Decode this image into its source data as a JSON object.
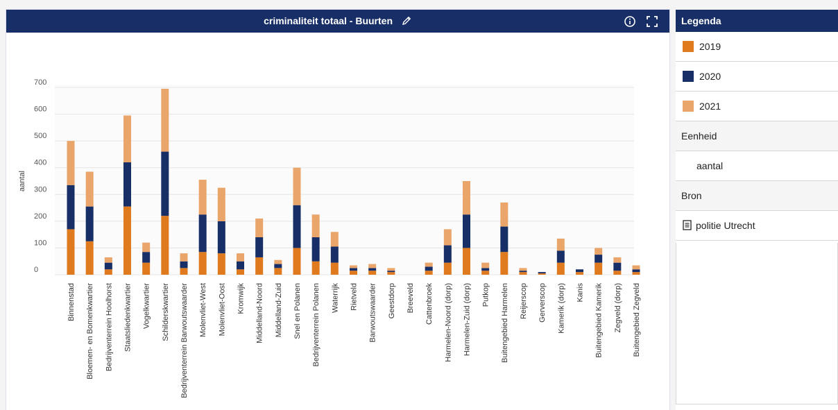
{
  "chart_panel": {
    "title": "criminaliteit totaal - Buurten"
  },
  "chart_data": {
    "type": "bar",
    "stacked": true,
    "ylabel": "aantal",
    "ylim": [
      0,
      700
    ],
    "yticks": [
      0,
      100,
      200,
      300,
      400,
      500,
      600,
      700
    ],
    "grid": true,
    "legend": "right panel",
    "categories": [
      "Binnenstad",
      "Bloemen- en Bomenkwartier",
      "Bedrijventerrein Hoolhorst",
      "Staatsliedenkwartier",
      "Vogelkwartier",
      "Schilderskwartier",
      "Bedrijventerrein Barwoutswaarder",
      "Molenvliet-West",
      "Molenvliet-Oost",
      "Kromwijk",
      "Middelland-Noord",
      "Middelland-Zuid",
      "Snel en Polanen",
      "Bedrijventerrein Polanen",
      "Waterrijk",
      "Rietveld",
      "Barwoutswaarder",
      "Geestdorp",
      "Breeveld",
      "Cattenbroek",
      "Harmelen-Noord (dorp)",
      "Harmelen-Zuid (dorp)",
      "Putkop",
      "Buitengebied Harmelen",
      "Reijerscop",
      "Gerverscop",
      "Kamerik (dorp)",
      "Kanis",
      "Buitengebied Kamerik",
      "Zegveld (dorp)",
      "Buitengebied Zegveld"
    ],
    "series": [
      {
        "name": "2019",
        "color": "#e07a1f",
        "values": [
          170,
          125,
          20,
          255,
          45,
          220,
          25,
          85,
          80,
          20,
          65,
          25,
          100,
          50,
          45,
          15,
          15,
          10,
          0,
          15,
          45,
          100,
          15,
          85,
          10,
          5,
          45,
          10,
          45,
          15,
          10
        ]
      },
      {
        "name": "2020",
        "color": "#172e66",
        "values": [
          165,
          130,
          25,
          165,
          40,
          240,
          25,
          140,
          120,
          30,
          75,
          15,
          160,
          90,
          60,
          10,
          10,
          5,
          0,
          15,
          65,
          125,
          10,
          95,
          5,
          5,
          45,
          10,
          30,
          30,
          10
        ]
      },
      {
        "name": "2021",
        "color": "#eaa56a",
        "values": [
          165,
          130,
          20,
          175,
          35,
          235,
          30,
          130,
          125,
          30,
          70,
          15,
          140,
          85,
          55,
          10,
          15,
          10,
          0,
          15,
          60,
          125,
          20,
          90,
          10,
          0,
          45,
          0,
          25,
          20,
          15
        ]
      }
    ]
  },
  "legend": {
    "title": "Legenda",
    "items": [
      {
        "label": "2019",
        "color": "#e07a1f"
      },
      {
        "label": "2020",
        "color": "#172e66"
      },
      {
        "label": "2021",
        "color": "#eaa56a"
      }
    ],
    "unit_title": "Eenheid",
    "unit_value": "aantal",
    "source_title": "Bron",
    "source_value": "politie Utrecht"
  }
}
